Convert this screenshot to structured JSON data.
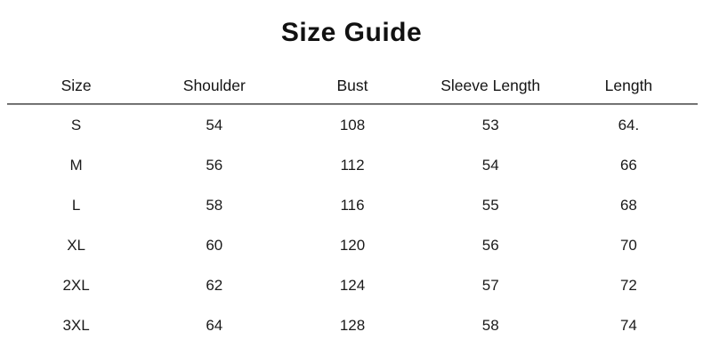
{
  "title": "Size Guide",
  "colors": {
    "background": "#ffffff",
    "text": "#1a1a1a",
    "divider": "#6e6e6e"
  },
  "table": {
    "headers": [
      "Size",
      "Shoulder",
      "Bust",
      "Sleeve Length",
      "Length"
    ],
    "rows": [
      [
        "S",
        "54",
        "108",
        "53",
        "64."
      ],
      [
        "M",
        "56",
        "112",
        "54",
        "66"
      ],
      [
        "L",
        "58",
        "116",
        "55",
        "68"
      ],
      [
        "XL",
        "60",
        "120",
        "56",
        "70"
      ],
      [
        "2XL",
        "62",
        "124",
        "57",
        "72"
      ],
      [
        "3XL",
        "64",
        "128",
        "58",
        "74"
      ]
    ]
  }
}
